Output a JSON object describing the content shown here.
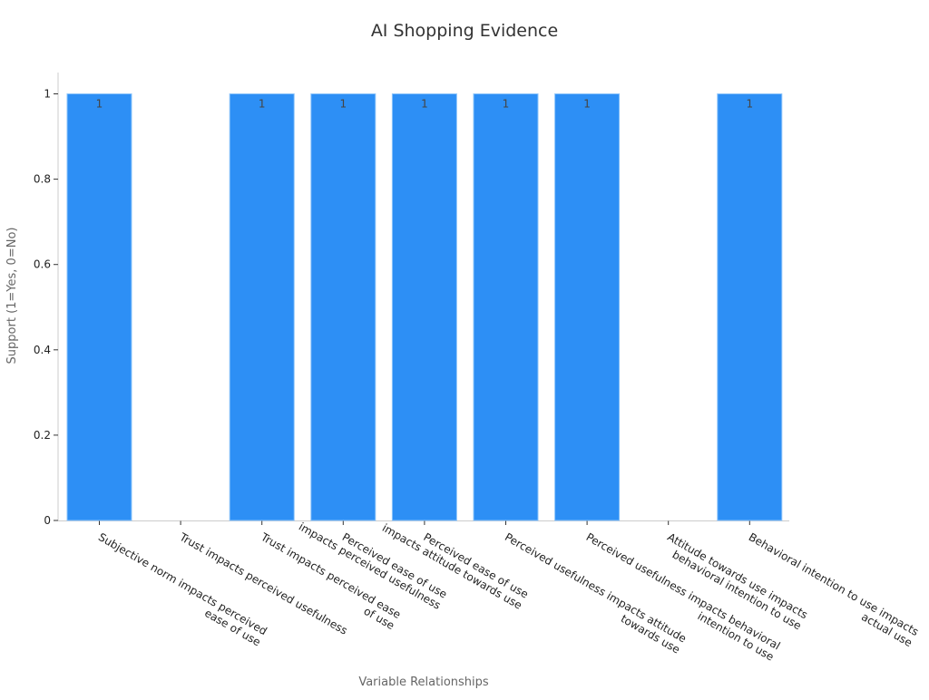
{
  "chart_data": {
    "type": "bar",
    "title": "AI Shopping Evidence",
    "xlabel": "Variable Relationships",
    "ylabel": "Support (1=Yes, 0=No)",
    "ylim": [
      0,
      1.05
    ],
    "yticks": [
      0,
      0.2,
      0.4,
      0.6,
      0.8,
      1
    ],
    "ytick_labels": [
      "0",
      "0.2",
      "0.4",
      "0.6",
      "0.8",
      "1"
    ],
    "categories": [
      [
        "Subjective norm impacts perceived",
        "ease of use"
      ],
      [
        "Trust impacts perceived usefulness"
      ],
      [
        "Trust impacts perceived ease",
        "of use"
      ],
      [
        "Perceived ease of use",
        "impacts perceived usefulness"
      ],
      [
        "Perceived ease of use",
        "impacts attitude towards use"
      ],
      [
        "Perceived usefulness impacts attitude",
        "towards use"
      ],
      [
        "Perceived usefulness impacts behavioral",
        "intention to use"
      ],
      [
        "Attitude towards use impacts",
        "behavioral intention to use"
      ],
      [
        "Behavioral intention to use impacts",
        "actual use"
      ]
    ],
    "values": [
      1,
      0,
      1,
      1,
      1,
      1,
      1,
      0,
      1
    ],
    "value_labels": [
      "1",
      "",
      "1",
      "1",
      "1",
      "1",
      "1",
      "",
      "1"
    ],
    "grid": false,
    "bar_color": "#2d8ff5",
    "bar_edge_color": "#8cc4fa"
  }
}
